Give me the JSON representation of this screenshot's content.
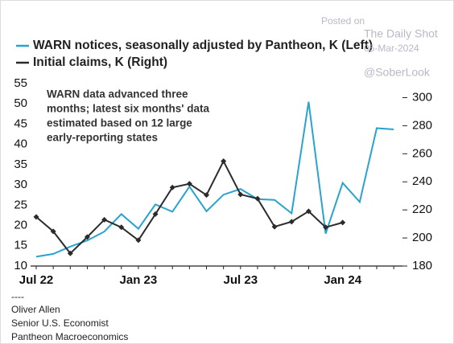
{
  "chart_data": {
    "type": "line",
    "legend_labels": [
      "WARN notices, seasonally adjusted by Pantheon, K (Left)",
      "Initial claims, K (Right)"
    ],
    "annotation": [
      "WARN data advanced three",
      "months; latest six months' data",
      "estimated based on 12 large",
      "early-reporting states"
    ],
    "categories": [
      "Jul 22",
      null,
      null,
      null,
      null,
      null,
      "Jan 23",
      null,
      null,
      null,
      null,
      null,
      "Jul 23",
      null,
      null,
      null,
      null,
      null,
      "Jan 24",
      null,
      null,
      null
    ],
    "series": [
      {
        "name": "WARN notices, seasonally adjusted by Pantheon, K (Left)",
        "color": "#29a3cf",
        "values": [
          12.3,
          13,
          14.8,
          16.3,
          18.5,
          22.8,
          19.2,
          25.2,
          23.4,
          29.6,
          23.5,
          27.6,
          29,
          26.5,
          26.3,
          23,
          50.5,
          18,
          30.5,
          25.8,
          44,
          43.7
        ]
      },
      {
        "name": "Initial claims, K (Right)",
        "color": "#2b2b2b",
        "axis": "y2",
        "values": [
          215,
          204.7,
          189,
          200.7,
          213,
          207.6,
          198.4,
          217,
          236,
          238.6,
          230.6,
          254.7,
          231,
          228,
          208,
          211.6,
          219,
          207.6,
          211,
          null,
          null,
          null
        ]
      }
    ],
    "ylim": [
      10,
      55
    ],
    "yticks": [
      10,
      15,
      20,
      25,
      30,
      35,
      40,
      45,
      50,
      55
    ],
    "y2lim": [
      180,
      310
    ],
    "y2ticks": [
      180,
      200,
      220,
      240,
      260,
      280,
      300
    ],
    "footer": [
      "----",
      "Oliver Allen",
      "Senior U.S. Economist",
      "Pantheon Macroeconomics"
    ],
    "watermark": [
      "Posted on",
      "The Daily Shot",
      "05-Mar-2024",
      "@SoberLook"
    ]
  }
}
